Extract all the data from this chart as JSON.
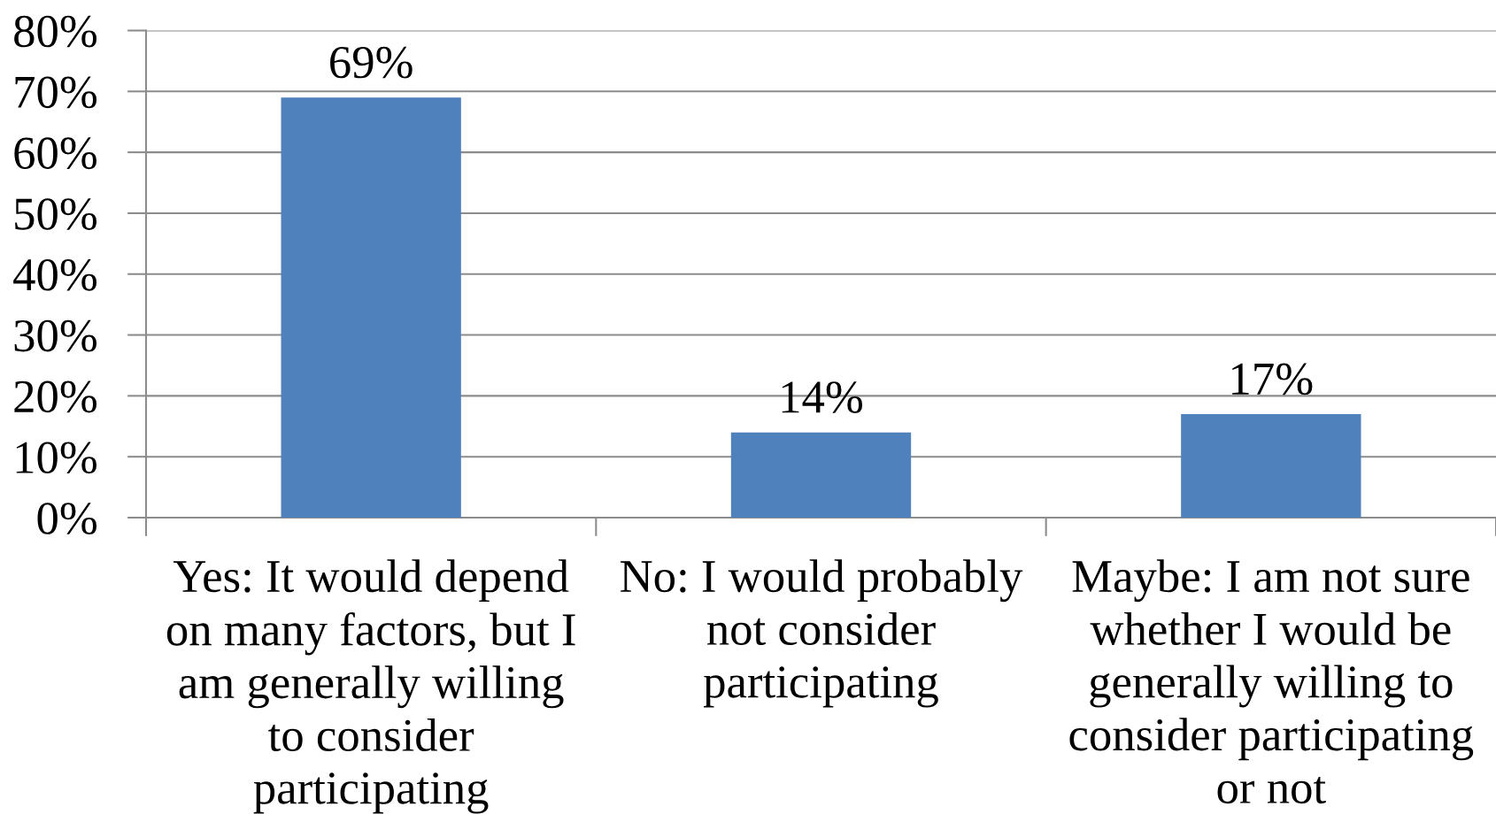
{
  "chart_data": {
    "type": "bar",
    "categories": [
      "Yes: It would depend\non many factors, but I\nam generally willing\nto consider\nparticipating",
      "No: I would probably\nnot consider\nparticipating",
      "Maybe: I am not sure\nwhether I would be\ngenerally willing to\nconsider participating\nor not"
    ],
    "values": [
      69,
      14,
      17
    ],
    "color": "#4f81bd",
    "value_labels": [
      "69%",
      "14%",
      "17%"
    ],
    "ylim": [
      0,
      80
    ],
    "yticks": [
      {
        "value": 0,
        "label": "0%"
      },
      {
        "value": 10,
        "label": "10%"
      },
      {
        "value": 20,
        "label": "20%"
      },
      {
        "value": 30,
        "label": "30%"
      },
      {
        "value": 40,
        "label": "40%"
      },
      {
        "value": 50,
        "label": "50%"
      },
      {
        "value": 60,
        "label": "60%"
      },
      {
        "value": 70,
        "label": "70%"
      },
      {
        "value": 80,
        "label": "80%"
      }
    ],
    "grid": "y",
    "legend": false
  }
}
